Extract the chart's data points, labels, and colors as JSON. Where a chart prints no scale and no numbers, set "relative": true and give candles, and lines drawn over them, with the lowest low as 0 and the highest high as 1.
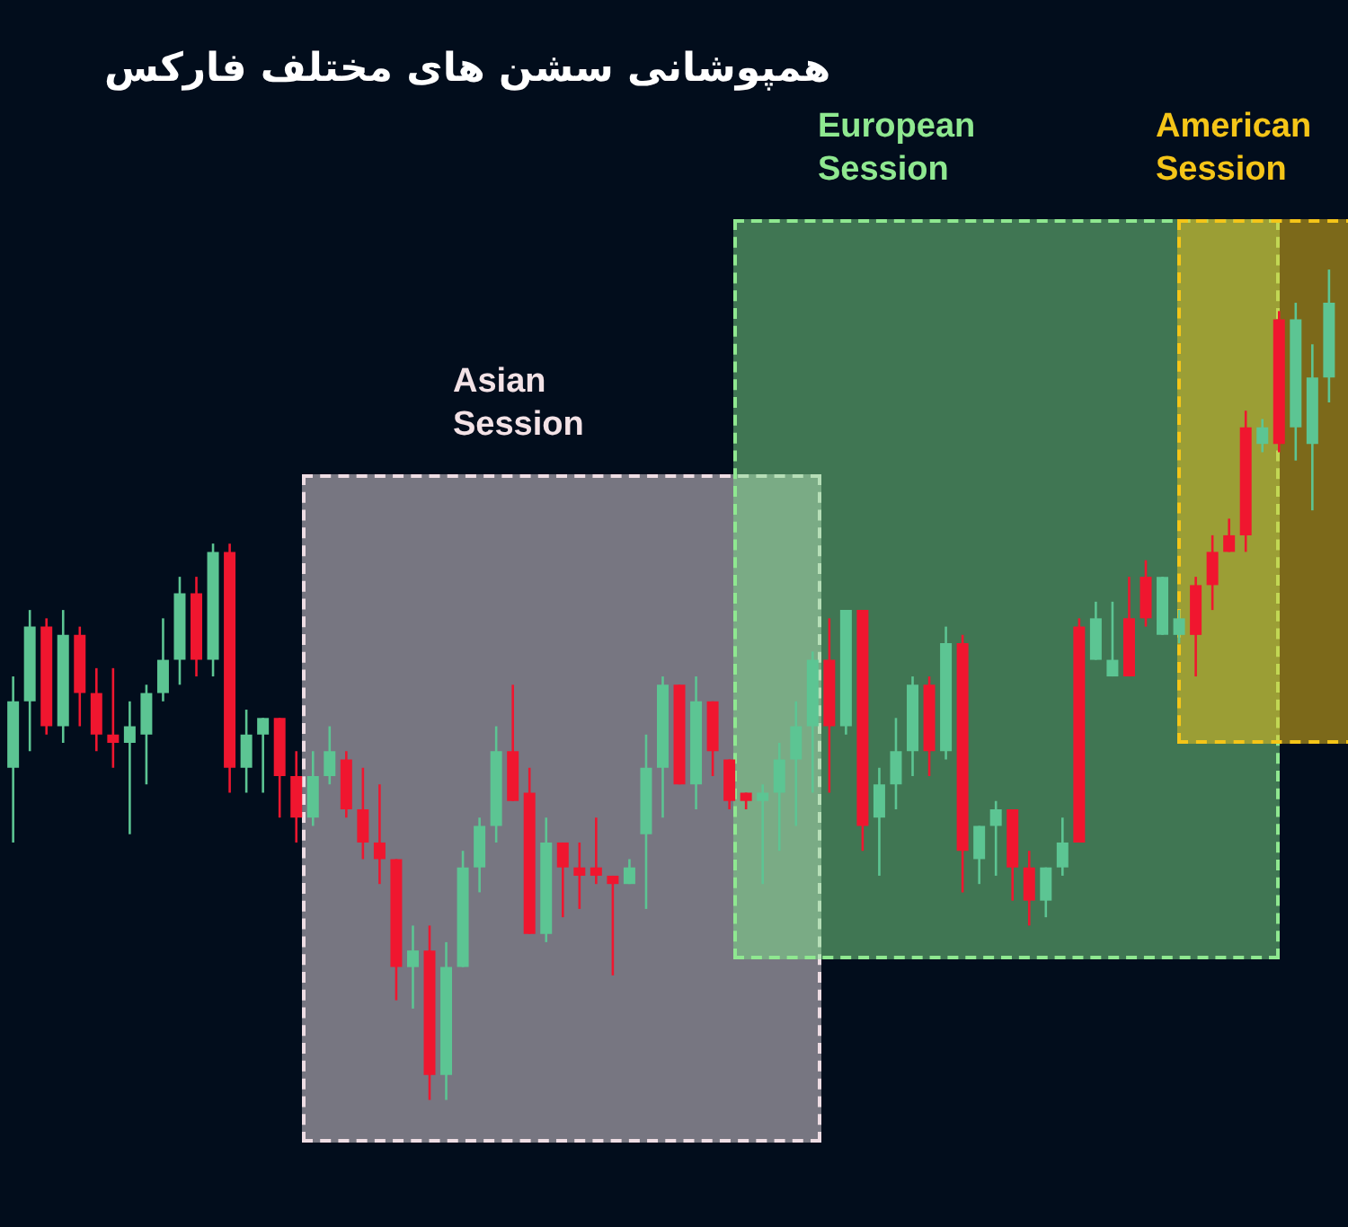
{
  "chart_data": {
    "type": "candlestick",
    "title": "همپوشانی سشن های مختلف فارکس",
    "relative": true,
    "categories": [
      null,
      null,
      null,
      null,
      null,
      null,
      null,
      null,
      null,
      null,
      null,
      null,
      null,
      null,
      null,
      null,
      null,
      null,
      null,
      null,
      null,
      null,
      null,
      null,
      null,
      null,
      null,
      null,
      null,
      null,
      null,
      null,
      null,
      null,
      null,
      null,
      null,
      null,
      null,
      null,
      null,
      null,
      null,
      null,
      null,
      null,
      null,
      null,
      null,
      null,
      null,
      null,
      null,
      null,
      null,
      null,
      null,
      null,
      null,
      null,
      null,
      null,
      null,
      null,
      null,
      null,
      null,
      null,
      null,
      null,
      null,
      null,
      null,
      null,
      null,
      null,
      null,
      null,
      null,
      null
    ],
    "ohlc": [
      [
        0.4,
        0.51,
        0.31,
        0.48
      ],
      [
        0.48,
        0.59,
        0.42,
        0.57
      ],
      [
        0.57,
        0.58,
        0.44,
        0.45
      ],
      [
        0.45,
        0.59,
        0.43,
        0.56
      ],
      [
        0.56,
        0.57,
        0.45,
        0.49
      ],
      [
        0.49,
        0.52,
        0.42,
        0.44
      ],
      [
        0.44,
        0.52,
        0.4,
        0.43
      ],
      [
        0.43,
        0.48,
        0.32,
        0.45
      ],
      [
        0.44,
        0.5,
        0.38,
        0.49
      ],
      [
        0.49,
        0.58,
        0.48,
        0.53
      ],
      [
        0.53,
        0.63,
        0.5,
        0.61
      ],
      [
        0.61,
        0.63,
        0.51,
        0.53
      ],
      [
        0.53,
        0.67,
        0.51,
        0.66
      ],
      [
        0.66,
        0.67,
        0.37,
        0.4
      ],
      [
        0.4,
        0.47,
        0.37,
        0.44
      ],
      [
        0.44,
        0.46,
        0.37,
        0.46
      ],
      [
        0.46,
        0.46,
        0.34,
        0.39
      ],
      [
        0.39,
        0.42,
        0.31,
        0.34
      ],
      [
        0.34,
        0.42,
        0.33,
        0.39
      ],
      [
        0.39,
        0.45,
        0.38,
        0.42
      ],
      [
        0.41,
        0.42,
        0.34,
        0.35
      ],
      [
        0.35,
        0.4,
        0.29,
        0.31
      ],
      [
        0.31,
        0.38,
        0.26,
        0.29
      ],
      [
        0.29,
        0.29,
        0.12,
        0.16
      ],
      [
        0.16,
        0.21,
        0.11,
        0.18
      ],
      [
        0.18,
        0.21,
        0.0,
        0.03
      ],
      [
        0.03,
        0.19,
        0.0,
        0.16
      ],
      [
        0.16,
        0.3,
        0.16,
        0.28
      ],
      [
        0.28,
        0.34,
        0.25,
        0.33
      ],
      [
        0.33,
        0.45,
        0.31,
        0.42
      ],
      [
        0.42,
        0.5,
        0.36,
        0.36
      ],
      [
        0.37,
        0.4,
        0.2,
        0.2
      ],
      [
        0.2,
        0.34,
        0.19,
        0.31
      ],
      [
        0.31,
        0.31,
        0.22,
        0.28
      ],
      [
        0.28,
        0.31,
        0.23,
        0.27
      ],
      [
        0.28,
        0.34,
        0.26,
        0.27
      ],
      [
        0.27,
        0.27,
        0.15,
        0.26
      ],
      [
        0.26,
        0.29,
        0.26,
        0.28
      ],
      [
        0.32,
        0.44,
        0.23,
        0.4
      ],
      [
        0.4,
        0.51,
        0.34,
        0.5
      ],
      [
        0.5,
        0.5,
        0.38,
        0.38
      ],
      [
        0.38,
        0.51,
        0.35,
        0.48
      ],
      [
        0.48,
        0.48,
        0.39,
        0.42
      ],
      [
        0.41,
        0.41,
        0.35,
        0.36
      ],
      [
        0.37,
        0.37,
        0.35,
        0.36
      ],
      [
        0.36,
        0.38,
        0.26,
        0.37
      ],
      [
        0.37,
        0.43,
        0.3,
        0.41
      ],
      [
        0.41,
        0.48,
        0.33,
        0.45
      ],
      [
        0.45,
        0.54,
        0.37,
        0.53
      ],
      [
        0.53,
        0.58,
        0.37,
        0.45
      ],
      [
        0.45,
        0.59,
        0.44,
        0.59
      ],
      [
        0.59,
        0.59,
        0.3,
        0.33
      ],
      [
        0.34,
        0.4,
        0.27,
        0.38
      ],
      [
        0.38,
        0.46,
        0.35,
        0.42
      ],
      [
        0.42,
        0.51,
        0.39,
        0.5
      ],
      [
        0.5,
        0.51,
        0.39,
        0.42
      ],
      [
        0.42,
        0.57,
        0.41,
        0.55
      ],
      [
        0.55,
        0.56,
        0.25,
        0.3
      ],
      [
        0.29,
        0.33,
        0.26,
        0.33
      ],
      [
        0.33,
        0.36,
        0.27,
        0.35
      ],
      [
        0.35,
        0.35,
        0.24,
        0.28
      ],
      [
        0.28,
        0.3,
        0.21,
        0.24
      ],
      [
        0.24,
        0.28,
        0.22,
        0.28
      ],
      [
        0.28,
        0.34,
        0.27,
        0.31
      ],
      [
        0.57,
        0.58,
        0.31,
        0.31
      ],
      [
        0.53,
        0.6,
        0.53,
        0.58
      ],
      [
        0.51,
        0.6,
        0.51,
        0.53
      ],
      [
        0.58,
        0.63,
        0.51,
        0.51
      ],
      [
        0.63,
        0.65,
        0.57,
        0.58
      ],
      [
        0.56,
        0.63,
        0.56,
        0.63
      ],
      [
        0.56,
        0.59,
        0.55,
        0.58
      ],
      [
        0.62,
        0.63,
        0.51,
        0.56
      ],
      [
        0.66,
        0.68,
        0.59,
        0.62
      ],
      [
        0.68,
        0.7,
        0.66,
        0.66
      ],
      [
        0.81,
        0.83,
        0.66,
        0.68
      ],
      [
        0.79,
        0.82,
        0.78,
        0.81
      ],
      [
        0.94,
        0.95,
        0.78,
        0.79
      ],
      [
        0.81,
        0.96,
        0.77,
        0.94
      ],
      [
        0.79,
        0.91,
        0.71,
        0.87
      ],
      [
        0.87,
        1.0,
        0.84,
        0.96
      ]
    ],
    "colors": [
      "#5cc593",
      "#5cc593",
      "#f0162f",
      "#5cc593",
      "#f0162f",
      "#f0162f",
      "#f0162f",
      "#5cc593",
      "#5cc593",
      "#5cc593",
      "#5cc593",
      "#f0162f",
      "#5cc593",
      "#f0162f",
      "#5cc593",
      "#5cc593",
      "#f0162f",
      "#f0162f",
      "#5cc593",
      "#5cc593",
      "#f0162f",
      "#f0162f",
      "#f0162f",
      "#f0162f",
      "#5cc593",
      "#f0162f",
      "#5cc593",
      "#5cc593",
      "#5cc593",
      "#5cc593",
      "#f0162f",
      "#f0162f",
      "#5cc593",
      "#f0162f",
      "#f0162f",
      "#f0162f",
      "#f0162f",
      "#5cc593",
      "#5cc593",
      "#5cc593",
      "#f0162f",
      "#5cc593",
      "#f0162f",
      "#f0162f",
      "#f0162f",
      "#5cc593",
      "#5cc593",
      "#5cc593",
      "#5cc593",
      "#f0162f",
      "#5cc593",
      "#f0162f",
      "#5cc593",
      "#5cc593",
      "#5cc593",
      "#f0162f",
      "#5cc593",
      "#f0162f",
      "#5cc593",
      "#5cc593",
      "#f0162f",
      "#f0162f",
      "#5cc593",
      "#5cc593",
      "#f0162f",
      "#5cc593",
      "#5cc593",
      "#f0162f",
      "#f0162f",
      "#5cc593",
      "#5cc593",
      "#f0162f",
      "#f0162f",
      "#f0162f",
      "#f0162f",
      "#5cc593",
      "#f0162f",
      "#5cc593",
      "#5cc593",
      "#5cc593"
    ],
    "annotations": [
      "Asian Session",
      "European Session",
      "American Session"
    ]
  }
}
